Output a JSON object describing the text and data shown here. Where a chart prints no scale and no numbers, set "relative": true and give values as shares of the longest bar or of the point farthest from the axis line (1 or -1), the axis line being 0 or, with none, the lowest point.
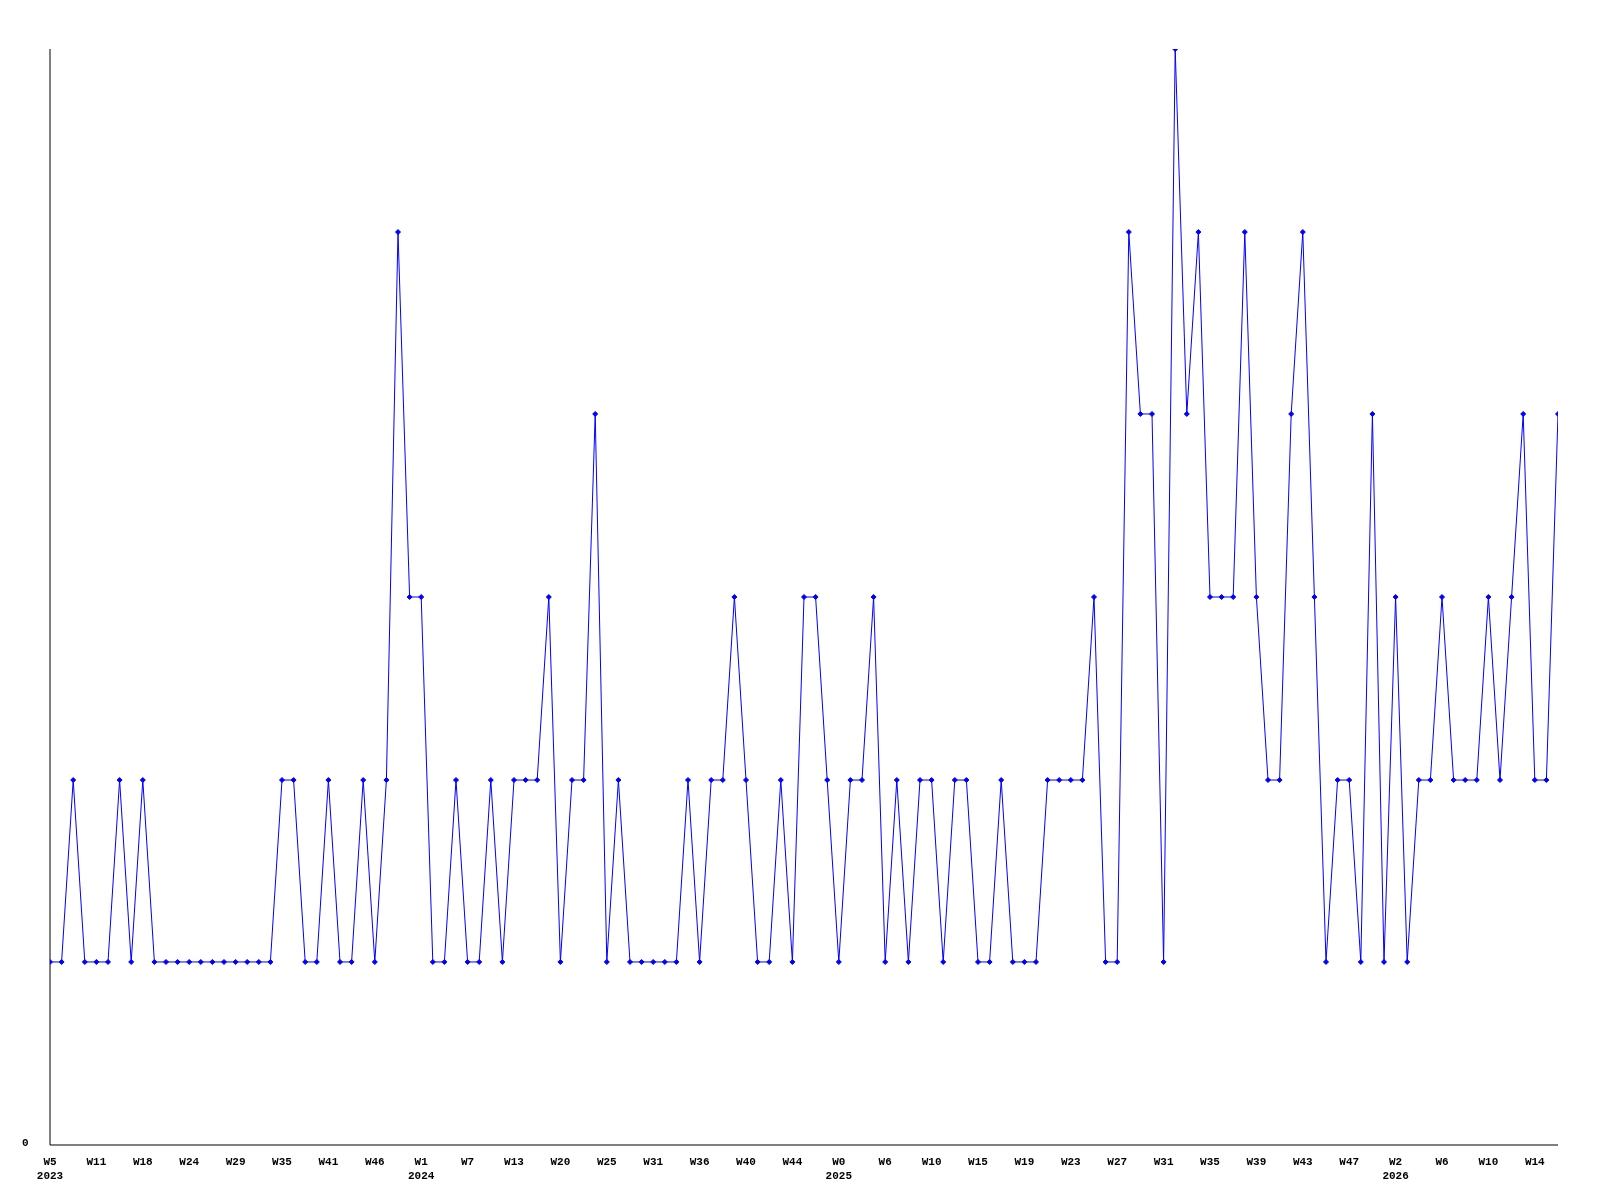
{
  "chart_data": {
    "type": "line",
    "relative": true,
    "marker": "diamond",
    "grid": false,
    "legend": false,
    "annotations": [
      "0"
    ],
    "categories": [
      "W5\n2023",
      null,
      null,
      null,
      "W11",
      null,
      null,
      null,
      "W18",
      null,
      null,
      null,
      "W24",
      null,
      null,
      null,
      "W29",
      null,
      null,
      null,
      "W35",
      null,
      null,
      null,
      "W41",
      null,
      null,
      null,
      "W46",
      null,
      null,
      null,
      "W1\n2024",
      null,
      null,
      null,
      "W7",
      null,
      null,
      null,
      "W13",
      null,
      null,
      null,
      "W20",
      null,
      null,
      null,
      "W25",
      null,
      null,
      null,
      "W31",
      null,
      null,
      null,
      "W36",
      null,
      null,
      null,
      "W40",
      null,
      null,
      null,
      "W44",
      null,
      null,
      null,
      "W0\n2025",
      null,
      null,
      null,
      "W6",
      null,
      null,
      null,
      "W10",
      null,
      null,
      null,
      "W15",
      null,
      null,
      null,
      "W19",
      null,
      null,
      null,
      "W23",
      null,
      null,
      null,
      "W27",
      null,
      null,
      null,
      "W31",
      null,
      null,
      null,
      "W35",
      null,
      null,
      null,
      "W39",
      null,
      null,
      null,
      "W43",
      null,
      null,
      null,
      "W47",
      null,
      null,
      null,
      "W2\n2026",
      null,
      null,
      null,
      "W6",
      null,
      null,
      null,
      "W10",
      null,
      null,
      null,
      "W14",
      null,
      null
    ],
    "series": [
      {
        "color": "#0000ff",
        "values": [
          0.167,
          0.167,
          0.333,
          0.167,
          0.167,
          0.167,
          0.333,
          0.167,
          0.333,
          0.167,
          0.167,
          0.167,
          0.167,
          0.167,
          0.167,
          0.167,
          0.167,
          0.167,
          0.167,
          0.167,
          0.333,
          0.333,
          0.167,
          0.167,
          0.333,
          0.167,
          0.167,
          0.333,
          0.167,
          0.333,
          0.833,
          0.5,
          0.5,
          0.167,
          0.167,
          0.333,
          0.167,
          0.167,
          0.333,
          0.167,
          0.333,
          0.333,
          0.333,
          0.5,
          0.167,
          0.333,
          0.333,
          0.667,
          0.167,
          0.333,
          0.167,
          0.167,
          0.167,
          0.167,
          0.167,
          0.333,
          0.167,
          0.333,
          0.333,
          0.5,
          0.333,
          0.167,
          0.167,
          0.333,
          0.167,
          0.5,
          0.5,
          0.333,
          0.167,
          0.333,
          0.333,
          0.5,
          0.167,
          0.333,
          0.167,
          0.333,
          0.333,
          0.167,
          0.333,
          0.333,
          0.167,
          0.167,
          0.333,
          0.167,
          0.167,
          0.167,
          0.333,
          0.333,
          0.333,
          0.333,
          0.5,
          0.167,
          0.167,
          0.833,
          0.667,
          0.667,
          0.167,
          1,
          0.667,
          0.833,
          0.5,
          0.5,
          0.5,
          0.833,
          0.5,
          0.333,
          0.333,
          0.667,
          0.833,
          0.5,
          0.167,
          0.333,
          0.333,
          0.167,
          0.667,
          0.167,
          0.5,
          0.167,
          0.333,
          0.333,
          0.5,
          0.333,
          0.333,
          0.333,
          0.5,
          0.333,
          0.5,
          0.667,
          0.333,
          0.333,
          0.667
        ]
      }
    ]
  }
}
